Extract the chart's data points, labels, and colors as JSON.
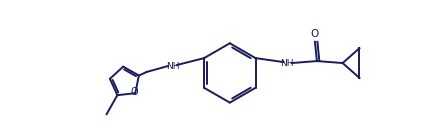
{
  "background": "#ffffff",
  "line_color": "#1a1a5e",
  "line_width": 1.6,
  "figsize": [
    4.26,
    1.35
  ],
  "dpi": 100,
  "xlim": [
    0.0,
    1.0
  ],
  "ylim": [
    0.0,
    1.0
  ]
}
